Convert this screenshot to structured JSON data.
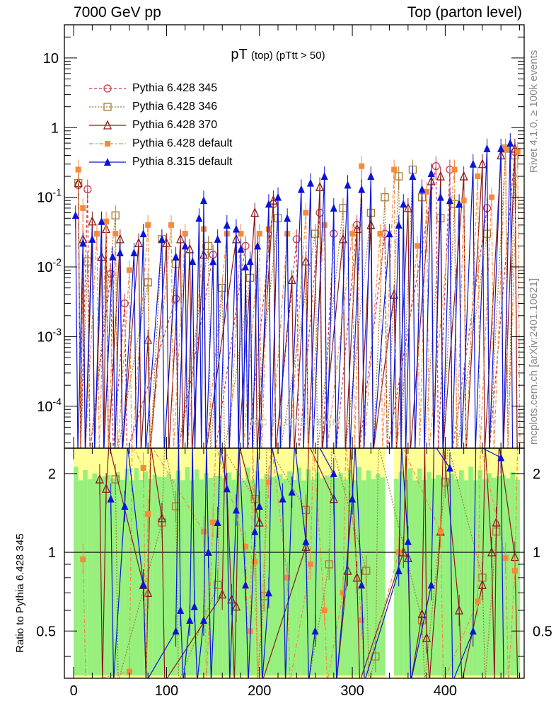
{
  "header": {
    "left": "7000 GeV pp",
    "right": "Top (parton level)"
  },
  "title": {
    "main": "pT",
    "sub": "(top) (pTtt > 50)"
  },
  "side_labels": {
    "rivet": "Rivet 4.1.0, ≥ 100k events",
    "mcplots": "mcplots.cern.ch [arXiv:2401.10621]"
  },
  "watermark": "MC PLOTS TEAM",
  "ratio_ylabel": "Ratio to Pythia 6.428 345",
  "legend": [
    {
      "label": "Pythia 6.428 345",
      "color": "#c8394f",
      "marker": "open-circle",
      "dash": "4,3"
    },
    {
      "label": "Pythia 6.428 346",
      "color": "#a57a32",
      "marker": "open-square",
      "dash": "2,2"
    },
    {
      "label": "Pythia 6.428 370",
      "color": "#8b1a1a",
      "marker": "open-triangle",
      "dash": ""
    },
    {
      "label": "Pythia 6.428 default",
      "color": "#f58a3b",
      "marker": "filled-square",
      "dash": "6,3,2,3"
    },
    {
      "label": "Pythia 8.315 default",
      "color": "#0a14d8",
      "marker": "filled-triangle",
      "dash": ""
    }
  ],
  "chart_data": {
    "type": "line",
    "title": "pT (top) (pTtt > 50)",
    "xlabel": "",
    "ylabel": "",
    "xlim": [
      -10,
      485
    ],
    "main_ylim": [
      2.5e-05,
      30
    ],
    "main_yscale": "log",
    "main_yticks": [
      {
        "value": 10,
        "label": "10"
      },
      {
        "value": 1,
        "label": "1"
      },
      {
        "value": 0.1,
        "label": "10^-1"
      },
      {
        "value": 0.01,
        "label": "10^-2"
      },
      {
        "value": 0.001,
        "label": "10^-3"
      },
      {
        "value": 0.0001,
        "label": "10^-4"
      }
    ],
    "xticks": [
      0,
      100,
      200,
      300,
      400
    ],
    "ratio_ylim": [
      0.33,
      2.5
    ],
    "ratio_yscale": "log",
    "ratio_yticks": [
      {
        "value": 2,
        "label": "2"
      },
      {
        "value": 1,
        "label": "1"
      },
      {
        "value": 0.5,
        "label": "0.5"
      }
    ],
    "series": [
      {
        "name": "Pythia 6.428 345",
        "x": [
          5,
          15,
          40,
          55,
          110,
          150,
          185,
          215,
          240,
          265,
          280,
          305,
          335,
          390,
          405,
          445,
          475
        ],
        "values": [
          0.15,
          0.13,
          0.008,
          0.003,
          0.0035,
          0.015,
          0.02,
          0.08,
          0.025,
          0.06,
          0.03,
          0.04,
          0.03,
          0.28,
          0.25,
          0.07,
          0.45
        ]
      },
      {
        "name": "Pythia 6.428 346",
        "x": [
          5,
          15,
          45,
          80,
          95,
          110,
          145,
          160,
          190,
          220,
          260,
          290,
          320,
          335,
          350,
          365,
          375,
          395,
          410,
          445,
          465,
          475
        ],
        "values": [
          0.16,
          0.012,
          0.055,
          0.006,
          0.025,
          0.011,
          0.02,
          0.005,
          0.007,
          0.05,
          0.03,
          0.07,
          0.06,
          0.1,
          0.2,
          0.25,
          0.1,
          0.05,
          0.08,
          0.03,
          0.5,
          0.4
        ]
      },
      {
        "name": "Pythia 6.428 370",
        "x": [
          5,
          10,
          20,
          30,
          35,
          50,
          70,
          80,
          100,
          115,
          125,
          140,
          175,
          195,
          215,
          235,
          250,
          265,
          290,
          305,
          320,
          345,
          360,
          385,
          395,
          420,
          440,
          460,
          475
        ],
        "values": [
          0.16,
          0.025,
          0.045,
          0.014,
          0.035,
          0.025,
          0.022,
          0.0009,
          0.022,
          0.025,
          0.018,
          0.015,
          0.025,
          0.06,
          0.09,
          0.0065,
          0.012,
          0.14,
          0.025,
          0.035,
          0.04,
          0.004,
          0.07,
          0.17,
          0.2,
          0.2,
          0.3,
          0.4,
          0.5
        ]
      },
      {
        "name": "Pythia 6.428 default",
        "x": [
          5,
          10,
          25,
          35,
          45,
          60,
          80,
          105,
          120,
          140,
          165,
          180,
          200,
          210,
          230,
          250,
          270,
          300,
          310,
          330,
          345,
          370,
          380,
          410,
          420,
          435,
          450,
          465,
          478
        ],
        "values": [
          0.25,
          0.07,
          0.03,
          0.045,
          0.03,
          0.009,
          0.04,
          0.04,
          0.03,
          0.035,
          0.03,
          0.03,
          0.03,
          0.035,
          0.03,
          0.06,
          0.04,
          0.03,
          0.28,
          0.03,
          0.25,
          0.02,
          0.12,
          0.25,
          0.09,
          0.2,
          0.1,
          0.5,
          0.45
        ]
      },
      {
        "name": "Pythia 8.315 default",
        "x": [
          2,
          10,
          20,
          30,
          42,
          50,
          65,
          75,
          95,
          110,
          120,
          128,
          135,
          140,
          150,
          155,
          165,
          175,
          180,
          185,
          190,
          198,
          210,
          220,
          230,
          245,
          255,
          270,
          280,
          295,
          310,
          320,
          340,
          350,
          355,
          365,
          375,
          385,
          395,
          405,
          415,
          430,
          445,
          460,
          470
        ],
        "values": [
          0.055,
          0.022,
          0.025,
          0.045,
          0.014,
          0.016,
          0.016,
          0.03,
          0.025,
          0.014,
          0.02,
          0.012,
          0.05,
          0.09,
          0.012,
          0.025,
          0.04,
          0.035,
          0.018,
          0.01,
          0.012,
          0.02,
          0.08,
          0.1,
          0.05,
          0.13,
          0.16,
          0.2,
          0.07,
          0.15,
          0.13,
          0.2,
          0.03,
          0.04,
          0.08,
          0.2,
          0.13,
          0.22,
          0.1,
          0.09,
          0.08,
          0.3,
          0.5,
          0.5,
          0.6
        ]
      }
    ],
    "ratio_series": [
      {
        "name": "Pythia 6.428 346",
        "x": [
          45,
          95,
          110,
          155,
          195,
          205,
          250,
          275,
          315,
          325,
          375,
          400,
          440,
          455
        ],
        "values": [
          1.9,
          1.3,
          1.5,
          0.75,
          1.6,
          0.68,
          1.45,
          0.9,
          0.85,
          0.4,
          0.55,
          1.85,
          0.8,
          1.2
        ]
      },
      {
        "name": "Pythia 6.428 370",
        "x": [
          28,
          35,
          75,
          80,
          95,
          160,
          170,
          175,
          200,
          250,
          280,
          295,
          305,
          355,
          360,
          375,
          380,
          395,
          415,
          440,
          450,
          455,
          475
        ],
        "values": [
          1.9,
          1.75,
          0.75,
          0.7,
          1.35,
          0.69,
          0.66,
          0.62,
          1.3,
          1.05,
          1.6,
          0.85,
          0.8,
          1.0,
          0.95,
          0.58,
          0.47,
          1.2,
          0.6,
          0.75,
          1.0,
          1.3,
          0.96
        ]
      },
      {
        "name": "Pythia 6.428 default",
        "x": [
          10,
          60,
          75,
          80,
          140,
          150,
          185,
          190,
          195,
          210,
          230,
          255,
          270,
          290,
          310,
          350,
          395,
          435,
          465,
          475
        ],
        "values": [
          0.94,
          0.35,
          2.1,
          1.4,
          1.2,
          1.3,
          1.05,
          0.5,
          0.92,
          1.85,
          0.8,
          0.9,
          0.6,
          0.7,
          0.55,
          1.0,
          1.2,
          0.65,
          0.95,
          0.85
        ]
      },
      {
        "name": "Pythia 8.315 default",
        "x": [
          40,
          55,
          75,
          110,
          115,
          125,
          130,
          140,
          145,
          155,
          165,
          175,
          185,
          195,
          200,
          210,
          225,
          235,
          250,
          260,
          280,
          300,
          310,
          350,
          360,
          385,
          405,
          430,
          460
        ],
        "values": [
          1.6,
          1.5,
          0.75,
          0.5,
          0.6,
          0.55,
          0.62,
          0.55,
          1.0,
          1.3,
          1.75,
          1.45,
          0.75,
          1.2,
          1.5,
          0.7,
          1.6,
          1.7,
          1.1,
          0.5,
          2.0,
          1.6,
          0.75,
          0.85,
          1.1,
          0.75,
          2.1,
          0.5,
          2.3
        ]
      }
    ]
  }
}
